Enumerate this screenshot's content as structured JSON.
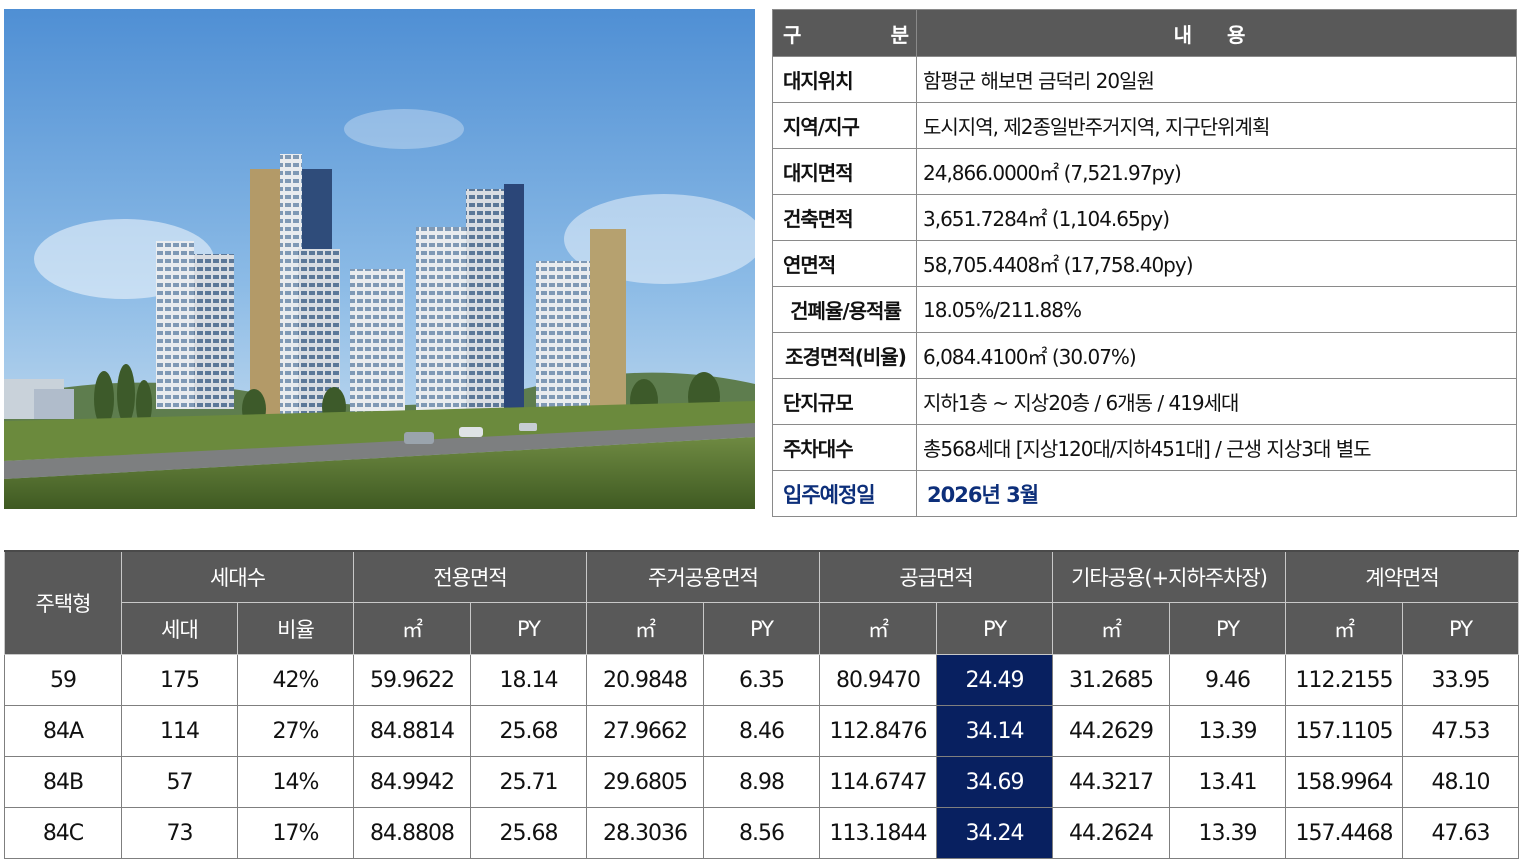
{
  "overview": {
    "header": {
      "key": "구　　분",
      "value": "내 용"
    },
    "rows": [
      {
        "key": "대지위치",
        "value": "함평군 해보면 금덕리 20일원"
      },
      {
        "key": "지역/지구",
        "value": "도시지역, 제2종일반주거지역, 지구단위계획"
      },
      {
        "key": "대지면적",
        "value": "24,866.0000㎡ (7,521.97py)"
      },
      {
        "key": "건축면적",
        "value": "3,651.7284㎡ (1,104.65py)"
      },
      {
        "key": "연면적",
        "value": "58,705.4408㎡ (17,758.40py)"
      },
      {
        "key": "건폐율/용적률",
        "value": "18.05%/211.88%"
      },
      {
        "key": "조경면적(비율)",
        "value": "6,084.4100㎡ (30.07%)"
      },
      {
        "key": "단지규모",
        "value": "지하1층 ~ 지상20층 / 6개동 / 419세대"
      },
      {
        "key": "주차대수",
        "value": "총568세대 [지상120대/지하451대] / 근생 지상3대 별도"
      },
      {
        "key": "입주예정일",
        "value": "2026년 3월"
      }
    ]
  },
  "units": {
    "headers": {
      "type": "주택형",
      "households": "세대수",
      "exclusive": "전용면적",
      "residential_common": "주거공용면적",
      "supply": "공급면적",
      "other_common": "기타공용(+지하주차장)",
      "contract": "계약면적",
      "sub_count": "세대",
      "sub_ratio": "비율",
      "sub_m2": "㎡",
      "sub_py": "PY"
    },
    "rows": [
      {
        "type": "59",
        "count": "175",
        "ratio": "42%",
        "excl_m2": "59.9622",
        "excl_py": "18.14",
        "res_m2": "20.9848",
        "res_py": "6.35",
        "sup_m2": "80.9470",
        "sup_py": "24.49",
        "oth_m2": "31.2685",
        "oth_py": "9.46",
        "con_m2": "112.2155",
        "con_py": "33.95"
      },
      {
        "type": "84A",
        "count": "114",
        "ratio": "27%",
        "excl_m2": "84.8814",
        "excl_py": "25.68",
        "res_m2": "27.9662",
        "res_py": "8.46",
        "sup_m2": "112.8476",
        "sup_py": "34.14",
        "oth_m2": "44.2629",
        "oth_py": "13.39",
        "con_m2": "157.1105",
        "con_py": "47.53"
      },
      {
        "type": "84B",
        "count": "57",
        "ratio": "14%",
        "excl_m2": "84.9942",
        "excl_py": "25.71",
        "res_m2": "29.6805",
        "res_py": "8.98",
        "sup_m2": "114.6747",
        "sup_py": "34.69",
        "oth_m2": "44.3217",
        "oth_py": "13.41",
        "con_m2": "158.9964",
        "con_py": "48.10"
      },
      {
        "type": "84C",
        "count": "73",
        "ratio": "17%",
        "excl_m2": "84.8808",
        "excl_py": "25.68",
        "res_m2": "28.3036",
        "res_py": "8.56",
        "sup_m2": "113.1844",
        "sup_py": "34.24",
        "oth_m2": "44.2624",
        "oth_py": "13.39",
        "con_m2": "157.4468",
        "con_py": "47.63"
      }
    ]
  },
  "colors": {
    "header_bg": "#595959",
    "highlight": "#082060",
    "movein_text": "#0d2f7a"
  }
}
